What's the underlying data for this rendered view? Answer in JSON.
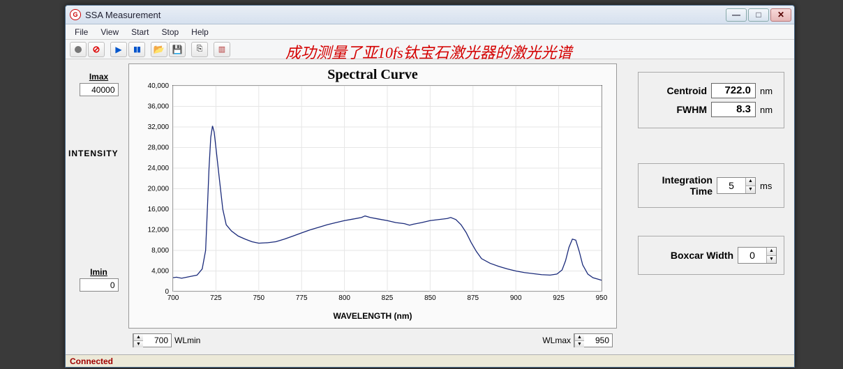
{
  "window": {
    "title": "SSA Measurement",
    "caption_buttons": [
      "minimize",
      "maximize",
      "close"
    ]
  },
  "menubar": [
    "File",
    "View",
    "Start",
    "Stop",
    "Help"
  ],
  "toolbar": {
    "buttons": [
      "record",
      "stop-record",
      "play",
      "pause",
      "open",
      "save",
      "export",
      "layout"
    ],
    "annotation": "成功测量了亚10fs钛宝石激光器的激光光谱",
    "annotation_color": "#d40000"
  },
  "left": {
    "imax_label": "Imax",
    "imax_value": "40000",
    "imin_label": "Imin",
    "imin_value": "0",
    "intensity_label": "INTENSITY"
  },
  "chart": {
    "title": "Spectral Curve",
    "type": "line",
    "xlabel": "WAVELENGTH (nm)",
    "xlim": [
      700,
      950
    ],
    "xtick_step": 25,
    "ylim": [
      0,
      40000
    ],
    "ytick_step": 4000,
    "background_color": "#ffffff",
    "grid_color": "#e6e6e6",
    "line_color": "#1a2a7a",
    "line_width": 1.3,
    "title_font": "Georgia",
    "title_fontsize": 20,
    "label_fontsize": 12,
    "tick_fontsize": 10,
    "data": [
      [
        700,
        2700
      ],
      [
        702,
        2800
      ],
      [
        705,
        2600
      ],
      [
        708,
        2800
      ],
      [
        711,
        3000
      ],
      [
        714,
        3200
      ],
      [
        717,
        4400
      ],
      [
        719,
        8000
      ],
      [
        720,
        16000
      ],
      [
        721,
        24000
      ],
      [
        722,
        30000
      ],
      [
        723,
        32200
      ],
      [
        724,
        31000
      ],
      [
        725,
        28000
      ],
      [
        727,
        22000
      ],
      [
        729,
        16000
      ],
      [
        731,
        13000
      ],
      [
        734,
        11800
      ],
      [
        738,
        10800
      ],
      [
        742,
        10200
      ],
      [
        746,
        9700
      ],
      [
        750,
        9400
      ],
      [
        755,
        9500
      ],
      [
        760,
        9700
      ],
      [
        765,
        10200
      ],
      [
        770,
        10800
      ],
      [
        775,
        11400
      ],
      [
        780,
        12000
      ],
      [
        785,
        12500
      ],
      [
        790,
        13000
      ],
      [
        795,
        13400
      ],
      [
        800,
        13800
      ],
      [
        805,
        14100
      ],
      [
        810,
        14400
      ],
      [
        812,
        14700
      ],
      [
        815,
        14400
      ],
      [
        820,
        14100
      ],
      [
        825,
        13800
      ],
      [
        830,
        13400
      ],
      [
        835,
        13200
      ],
      [
        838,
        12900
      ],
      [
        840,
        13100
      ],
      [
        845,
        13400
      ],
      [
        850,
        13800
      ],
      [
        855,
        14000
      ],
      [
        860,
        14200
      ],
      [
        862,
        14400
      ],
      [
        865,
        14000
      ],
      [
        868,
        13000
      ],
      [
        871,
        11500
      ],
      [
        874,
        9500
      ],
      [
        877,
        7800
      ],
      [
        880,
        6400
      ],
      [
        885,
        5500
      ],
      [
        890,
        4900
      ],
      [
        895,
        4400
      ],
      [
        900,
        4000
      ],
      [
        905,
        3700
      ],
      [
        910,
        3500
      ],
      [
        915,
        3300
      ],
      [
        920,
        3200
      ],
      [
        924,
        3400
      ],
      [
        927,
        4200
      ],
      [
        929,
        6000
      ],
      [
        931,
        8600
      ],
      [
        933,
        10200
      ],
      [
        935,
        10000
      ],
      [
        937,
        7800
      ],
      [
        939,
        5200
      ],
      [
        942,
        3400
      ],
      [
        945,
        2700
      ],
      [
        948,
        2400
      ],
      [
        950,
        2200
      ]
    ]
  },
  "bottombar": {
    "wlmin_label": "WLmin",
    "wlmin_value": "700",
    "wlmax_label": "WLmax",
    "wlmax_value": "950"
  },
  "right": {
    "centroid_label": "Centroid",
    "centroid_value": "722.0",
    "centroid_unit": "nm",
    "fwhm_label": "FWHM",
    "fwhm_value": "8.3",
    "fwhm_unit": "nm",
    "inttime_label": "Integration\nTime",
    "inttime_value": "5",
    "inttime_unit": "ms",
    "boxcar_label": "Boxcar Width",
    "boxcar_value": "0"
  },
  "statusbar": {
    "text": "Connected",
    "color": "#a00000"
  }
}
